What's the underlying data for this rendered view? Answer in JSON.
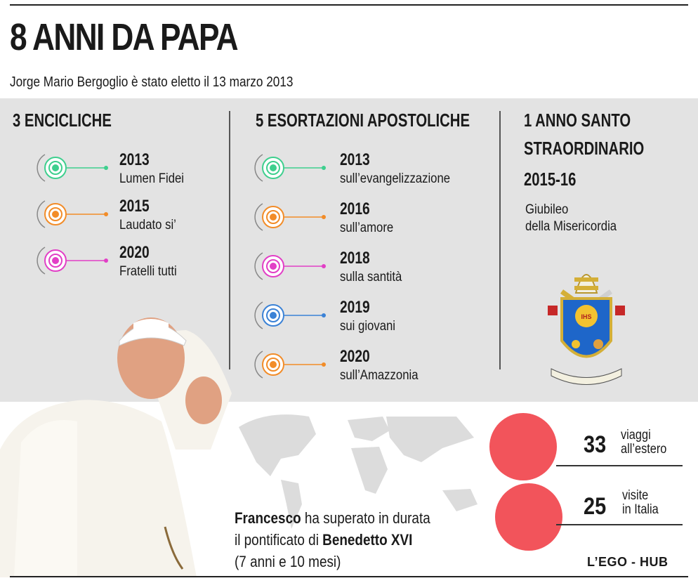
{
  "title": "8 ANNI DA PAPA",
  "subtitle": "Jorge Mario Bergoglio è stato eletto il 13 marzo 2013",
  "encicliche": {
    "heading": "3 ENCICLICHE",
    "items": [
      {
        "year": "2013",
        "name": "Lumen Fidei",
        "color": "#3ecf8e"
      },
      {
        "year": "2015",
        "name": "Laudato si’",
        "color": "#f28c28"
      },
      {
        "year": "2020",
        "name": "Fratelli tutti",
        "color": "#e23fc6"
      }
    ]
  },
  "esortazioni": {
    "heading": "5 ESORTAZIONI APOSTOLICHE",
    "items": [
      {
        "year": "2013",
        "name": "sull’evangelizzazione",
        "color": "#3ecf8e"
      },
      {
        "year": "2016",
        "name": "sull’amore",
        "color": "#f28c28"
      },
      {
        "year": "2018",
        "name": "sulla santità",
        "color": "#e23fc6"
      },
      {
        "year": "2019",
        "name": "sui giovani",
        "color": "#3b82d6"
      },
      {
        "year": "2020",
        "name": "sull’Amazzonia",
        "color": "#f28c28"
      }
    ]
  },
  "anno_santo": {
    "heading_line1": "1 ANNO SANTO",
    "heading_line2": "STRAORDINARIO",
    "years": "2015-16",
    "desc_line1": "Giubileo",
    "desc_line2": "della Misericordia"
  },
  "stats": [
    {
      "value": "33",
      "label_line1": "viaggi",
      "label_line2": "all’estero"
    },
    {
      "value": "25",
      "label_line1": "visite",
      "label_line2": "in Italia"
    }
  ],
  "francesco": {
    "bold1": "Francesco",
    "text1": " ha superato in durata",
    "text2": "il pontificato di ",
    "bold2": "Benedetto XVI",
    "text3": "(7 anni e 10 mesi)"
  },
  "credit": "L’EGO - HUB",
  "colors": {
    "accent_circle": "#f2545b",
    "panel": "#e3e3e3"
  }
}
